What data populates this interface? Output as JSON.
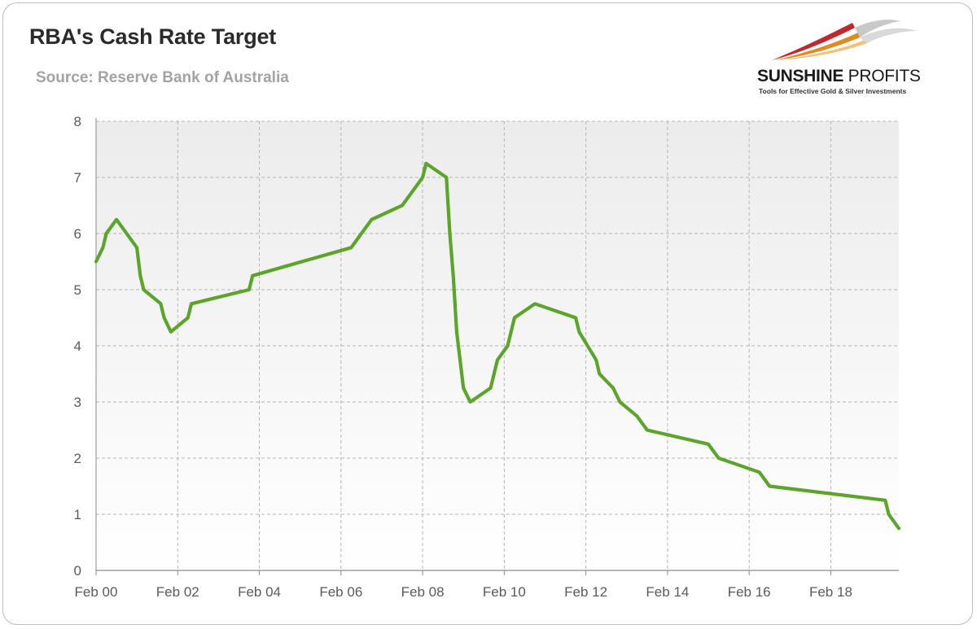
{
  "header": {
    "title": "RBA's Cash Rate Target",
    "subtitle": "Source: Reserve Bank of Australia"
  },
  "logo": {
    "name_bold": "SUNSHINE",
    "name_light": " PROFITS",
    "tagline": "Tools for Effective Gold & Silver Investments",
    "colors": [
      "#c0282d",
      "#e38a1e",
      "#f1c27a",
      "#c8c8c8"
    ]
  },
  "colors": {
    "line": "#5aa52a",
    "plot_bg_top": "#ececec",
    "plot_bg_bottom": "#ffffff",
    "grid": "#b5b5b5",
    "axis": "#8a8a8a"
  },
  "chart_data": {
    "type": "line",
    "title": "RBA's Cash Rate Target",
    "subtitle": "Source: Reserve Bank of Australia",
    "xlabel": "",
    "ylabel": "",
    "ylim": [
      0,
      8
    ],
    "xlim": [
      "2000-02",
      "2019-10"
    ],
    "x_tick_labels": [
      "Feb 00",
      "Feb 02",
      "Feb 04",
      "Feb 06",
      "Feb 08",
      "Feb 10",
      "Feb 12",
      "Feb 14",
      "Feb 16",
      "Feb 18"
    ],
    "x_ticks": [
      "2000-02",
      "2002-02",
      "2004-02",
      "2006-02",
      "2008-02",
      "2010-02",
      "2012-02",
      "2014-02",
      "2016-02",
      "2018-02"
    ],
    "y_ticks": [
      0,
      1,
      2,
      3,
      4,
      5,
      6,
      7,
      8
    ],
    "grid": true,
    "legend": "none",
    "series": [
      {
        "x": [
          "2000-02",
          "2000-04",
          "2000-05",
          "2000-08",
          "2001-02",
          "2001-03",
          "2001-04",
          "2001-09",
          "2001-10",
          "2001-12",
          "2002-05",
          "2002-06",
          "2003-11",
          "2003-12",
          "2006-05",
          "2006-08",
          "2006-11",
          "2007-08",
          "2007-11",
          "2008-02",
          "2008-03",
          "2008-09",
          "2008-10",
          "2008-11",
          "2008-12",
          "2009-02",
          "2009-04",
          "2009-10",
          "2009-11",
          "2009-12",
          "2010-03",
          "2010-04",
          "2010-05",
          "2010-11",
          "2011-11",
          "2011-12",
          "2012-05",
          "2012-06",
          "2012-10",
          "2012-12",
          "2013-05",
          "2013-08",
          "2015-02",
          "2015-05",
          "2016-05",
          "2016-08",
          "2019-06",
          "2019-07",
          "2019-10"
        ],
        "y": [
          5.5,
          5.75,
          6.0,
          6.25,
          5.75,
          5.25,
          5.0,
          4.75,
          4.5,
          4.25,
          4.5,
          4.75,
          5.0,
          5.25,
          5.75,
          6.0,
          6.25,
          6.5,
          6.75,
          7.0,
          7.25,
          7.0,
          6.0,
          5.25,
          4.25,
          3.25,
          3.0,
          3.25,
          3.5,
          3.75,
          4.0,
          4.25,
          4.5,
          4.75,
          4.5,
          4.25,
          3.75,
          3.5,
          3.25,
          3.0,
          2.75,
          2.5,
          2.25,
          2.0,
          1.75,
          1.5,
          1.25,
          1.0,
          0.75
        ]
      }
    ]
  }
}
